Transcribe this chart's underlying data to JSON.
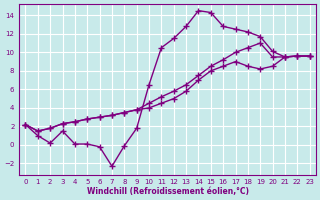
{
  "xlabel": "Windchill (Refroidissement éolien,°C)",
  "bg_color": "#c8eaea",
  "grid_color": "#ffffff",
  "line_color": "#800080",
  "marker": "+",
  "markersize": 4,
  "markeredgewidth": 1.0,
  "linewidth": 1.0,
  "xlim": [
    -0.5,
    23.5
  ],
  "ylim": [
    -3.2,
    15.2
  ],
  "xticks": [
    0,
    1,
    2,
    3,
    4,
    5,
    6,
    7,
    8,
    9,
    10,
    11,
    12,
    13,
    14,
    15,
    16,
    17,
    18,
    19,
    20,
    21,
    22,
    23
  ],
  "yticks": [
    -2,
    0,
    2,
    4,
    6,
    8,
    10,
    12,
    14
  ],
  "line1_x": [
    0,
    1,
    2,
    3,
    4,
    5,
    6,
    7,
    8,
    9,
    10,
    11,
    12,
    13,
    14,
    15,
    16,
    17,
    18,
    19,
    20,
    21,
    22,
    23
  ],
  "line1_y": [
    2.2,
    1.0,
    0.2,
    1.5,
    0.1,
    0.1,
    -0.2,
    -2.3,
    -0.1,
    1.8,
    6.5,
    10.5,
    11.5,
    12.8,
    14.5,
    14.3,
    12.8,
    12.5,
    12.2,
    11.7,
    10.1,
    9.5,
    9.6,
    9.6
  ],
  "line2_x": [
    0,
    1,
    2,
    3,
    4,
    5,
    6,
    7,
    8,
    9,
    10,
    11,
    12,
    13,
    14,
    15,
    16,
    17,
    18,
    19,
    20,
    21,
    22,
    23
  ],
  "line2_y": [
    2.2,
    1.5,
    1.8,
    2.3,
    2.5,
    2.8,
    3.0,
    3.2,
    3.5,
    3.8,
    4.5,
    5.2,
    5.8,
    6.5,
    7.5,
    8.5,
    9.2,
    10.0,
    10.5,
    11.0,
    9.5,
    9.5,
    9.6,
    9.6
  ],
  "line3_x": [
    0,
    1,
    2,
    3,
    4,
    5,
    6,
    7,
    8,
    9,
    10,
    11,
    12,
    13,
    14,
    15,
    16,
    17,
    18,
    19,
    20,
    21,
    22,
    23
  ],
  "line3_y": [
    2.2,
    1.5,
    1.8,
    2.3,
    2.5,
    2.8,
    3.0,
    3.2,
    3.5,
    3.8,
    4.0,
    4.5,
    5.0,
    5.8,
    7.0,
    8.0,
    8.5,
    9.0,
    8.5,
    8.2,
    8.5,
    9.5,
    9.6,
    9.6
  ]
}
